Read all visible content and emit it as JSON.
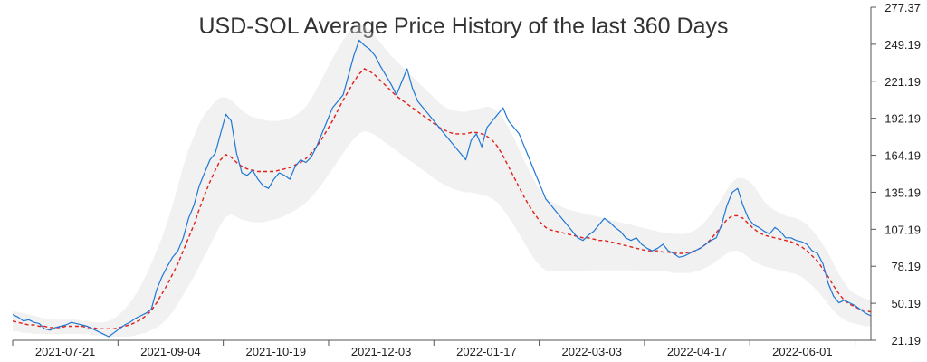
{
  "chart_data": {
    "type": "line",
    "title": "USD-SOL Average Price History of the last 360 Days",
    "xlabel": "",
    "ylabel": "",
    "x_tick_labels": [
      "2021-07-21",
      "2021-09-04",
      "2021-10-19",
      "2021-12-03",
      "2022-01-17",
      "2022-03-03",
      "2022-04-17",
      "2022-06-01"
    ],
    "y_tick_labels": [
      "277.37",
      "249.19",
      "221.19",
      "192.19",
      "164.19",
      "135.19",
      "107.19",
      "78.19",
      "50.19",
      "21.19"
    ],
    "ylim": [
      21.19,
      277.37
    ],
    "y_axis_side": "right",
    "grid": false,
    "legend": "none",
    "colors": {
      "price": "#1f77d4",
      "average": "#e0201b",
      "band": "#d8d8d8"
    },
    "series": [
      {
        "role": "price",
        "values": [
          41,
          39,
          36,
          37,
          35,
          34,
          30,
          29,
          31,
          32,
          33,
          35,
          34,
          33,
          32,
          30,
          28,
          26,
          24,
          27,
          30,
          33,
          35,
          38,
          40,
          42,
          45,
          60,
          70,
          78,
          85,
          90,
          100,
          115,
          125,
          140,
          150,
          160,
          165,
          180,
          195,
          190,
          165,
          150,
          148,
          152,
          145,
          140,
          138,
          145,
          150,
          148,
          145,
          155,
          160,
          158,
          162,
          170,
          180,
          190,
          200,
          205,
          210,
          225,
          240,
          252,
          248,
          245,
          240,
          232,
          225,
          218,
          210,
          220,
          230,
          215,
          205,
          200,
          195,
          190,
          185,
          180,
          175,
          170,
          165,
          160,
          175,
          180,
          170,
          185,
          190,
          195,
          200,
          190,
          185,
          180,
          170,
          160,
          150,
          140,
          130,
          125,
          120,
          115,
          110,
          105,
          100,
          98,
          102,
          105,
          110,
          115,
          112,
          108,
          105,
          100,
          98,
          100,
          95,
          92,
          90,
          92,
          95,
          90,
          88,
          85,
          86,
          88,
          90,
          92,
          95,
          98,
          100,
          110,
          125,
          135,
          138,
          125,
          115,
          110,
          108,
          105,
          103,
          108,
          105,
          100,
          100,
          98,
          97,
          95,
          90,
          88,
          80,
          65,
          55,
          50,
          52,
          50,
          48,
          45,
          42,
          40
        ]
      },
      {
        "role": "average",
        "values": [
          36,
          35,
          34,
          33,
          33,
          32,
          32,
          31,
          31,
          31,
          32,
          32,
          32,
          32,
          31,
          31,
          30,
          30,
          30,
          30,
          31,
          32,
          33,
          35,
          37,
          40,
          44,
          50,
          57,
          64,
          72,
          80,
          90,
          100,
          110,
          122,
          133,
          143,
          152,
          160,
          164,
          162,
          158,
          155,
          153,
          152,
          151,
          151,
          151,
          151,
          152,
          153,
          154,
          156,
          158,
          161,
          165,
          170,
          176,
          183,
          190,
          198,
          206,
          213,
          220,
          226,
          230,
          228,
          225,
          221,
          217,
          213,
          209,
          206,
          203,
          200,
          197,
          194,
          191,
          188,
          185,
          183,
          181,
          180,
          180,
          180,
          181,
          181,
          180,
          178,
          175,
          170,
          163,
          155,
          147,
          139,
          131,
          124,
          118,
          112,
          108,
          106,
          105,
          104,
          103,
          102,
          101,
          100,
          100,
          99,
          98,
          98,
          97,
          96,
          95,
          94,
          93,
          92,
          91,
          90,
          90,
          90,
          89,
          89,
          88,
          88,
          88,
          89,
          90,
          92,
          95,
          99,
          104,
          109,
          114,
          117,
          117,
          115,
          111,
          107,
          104,
          102,
          101,
          100,
          99,
          98,
          97,
          95,
          93,
          90,
          86,
          82,
          76,
          70,
          63,
          57,
          52,
          49,
          47,
          45,
          44,
          43
        ]
      },
      {
        "role": "band_upper",
        "values": [
          44,
          43,
          42,
          41,
          40,
          39,
          38,
          37,
          37,
          37,
          37,
          37,
          37,
          36,
          36,
          35,
          35,
          35,
          36,
          38,
          41,
          45,
          50,
          56,
          63,
          71,
          80,
          90,
          100,
          112,
          125,
          140,
          155,
          168,
          178,
          188,
          195,
          200,
          205,
          208,
          208,
          206,
          202,
          198,
          195,
          193,
          192,
          191,
          190,
          190,
          190,
          191,
          192,
          194,
          197,
          201,
          207,
          214,
          222,
          230,
          238,
          245,
          252,
          258,
          262,
          264,
          263,
          260,
          255,
          250,
          245,
          240,
          236,
          232,
          228,
          224,
          220,
          216,
          212,
          208,
          204,
          201,
          199,
          198,
          197,
          197,
          198,
          199,
          200,
          201,
          200,
          197,
          192,
          185,
          177,
          168,
          159,
          151,
          143,
          136,
          131,
          128,
          126,
          124,
          122,
          121,
          120,
          119,
          118,
          117,
          116,
          115,
          114,
          113,
          112,
          111,
          110,
          109,
          108,
          107,
          106,
          105,
          104,
          104,
          103,
          103,
          103,
          104,
          106,
          109,
          113,
          118,
          124,
          130,
          137,
          143,
          146,
          146,
          144,
          140,
          134,
          128,
          124,
          121,
          119,
          117,
          116,
          115,
          113,
          110,
          106,
          101,
          95,
          88,
          80,
          72,
          66,
          60,
          57,
          55,
          53,
          52
        ]
      },
      {
        "role": "band_lower",
        "values": [
          28,
          28,
          27,
          27,
          26,
          26,
          26,
          26,
          26,
          26,
          26,
          26,
          26,
          26,
          26,
          25,
          25,
          25,
          24,
          24,
          24,
          24,
          24,
          25,
          26,
          27,
          29,
          31,
          34,
          38,
          43,
          49,
          56,
          63,
          70,
          78,
          86,
          94,
          102,
          110,
          116,
          118,
          116,
          114,
          113,
          112,
          112,
          112,
          113,
          114,
          115,
          117,
          119,
          121,
          124,
          127,
          131,
          136,
          141,
          147,
          153,
          159,
          165,
          171,
          176,
          180,
          182,
          181,
          179,
          176,
          173,
          170,
          167,
          164,
          161,
          158,
          155,
          152,
          149,
          146,
          143,
          141,
          139,
          137,
          136,
          135,
          135,
          134,
          133,
          132,
          130,
          127,
          122,
          116,
          110,
          103,
          96,
          89,
          83,
          78,
          75,
          74,
          74,
          74,
          74,
          74,
          74,
          74,
          75,
          75,
          75,
          75,
          75,
          75,
          75,
          75,
          75,
          75,
          74,
          74,
          74,
          74,
          74,
          74,
          73,
          73,
          73,
          73,
          74,
          75,
          77,
          79,
          82,
          85,
          88,
          90,
          90,
          88,
          85,
          82,
          80,
          78,
          77,
          76,
          75,
          74,
          73,
          72,
          70,
          67,
          63,
          59,
          54,
          49,
          44,
          40,
          37,
          35,
          34,
          33,
          32,
          32
        ]
      }
    ]
  }
}
